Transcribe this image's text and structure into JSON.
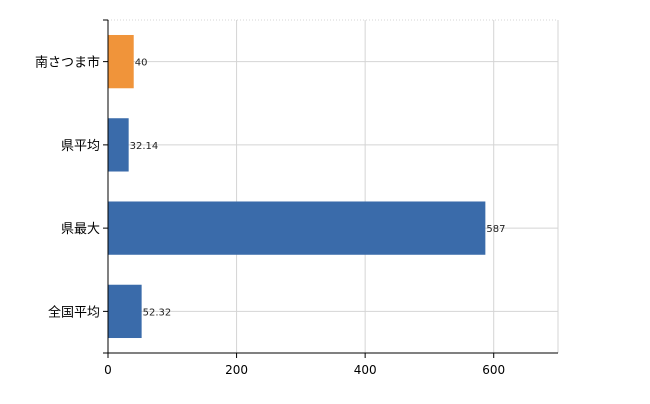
{
  "chart_data": {
    "type": "bar",
    "orientation": "horizontal",
    "categories": [
      "南さつま市",
      "県平均",
      "県最大",
      "全国平均"
    ],
    "values": [
      40,
      32.14,
      587,
      52.32
    ],
    "value_labels": [
      "40",
      "32.14",
      "587",
      "52.32"
    ],
    "bar_colors": [
      "#F0943A",
      "#3A6BAA",
      "#3A6BAA",
      "#3A6BAA"
    ],
    "xlim": [
      0,
      700
    ],
    "xticks": [
      0,
      200,
      400,
      600
    ],
    "xtick_labels": [
      "0",
      "200",
      "400",
      "600"
    ],
    "grid": true,
    "legend": "none",
    "title": "",
    "xlabel": "",
    "ylabel": ""
  }
}
